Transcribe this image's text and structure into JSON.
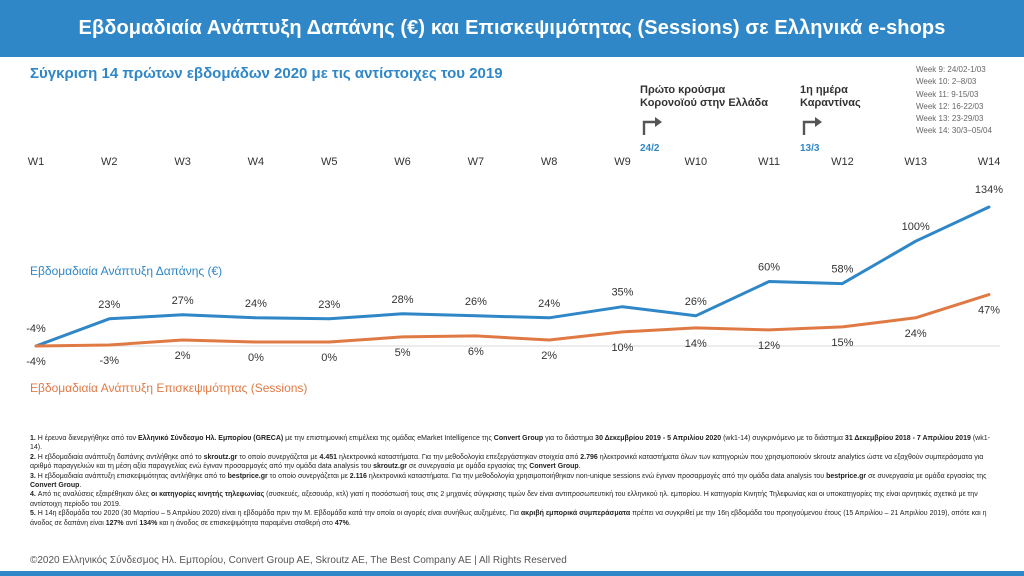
{
  "header": {
    "title": "Εβδομαδιαία Ανάπτυξη Δαπάνης (€) και Επισκεψιμότητας (Sessions) σε Ελληνικά e-shops"
  },
  "subtitle": "Σύγκριση 14 πρώτων εβδομάδων 2020 με τις αντίστοιχες του 2019",
  "weeks_legend": [
    "Week 9: 24/02-1/03",
    "Week 10: 2–8/03",
    "Week 11: 9-15/03",
    "Week 12: 16-22/03",
    "Week 13: 23-29/03",
    "Week 14: 30/3–05/04"
  ],
  "events": [
    {
      "line1": "Πρώτο κρούσμα",
      "line2": "Κορονοϊού στην Ελλάδα",
      "date": "24/2"
    },
    {
      "line1": "1η ημέρα",
      "line2": "Καραντίνας",
      "date": "13/3"
    }
  ],
  "chart_data": {
    "type": "line",
    "categories": [
      "W1",
      "W2",
      "W3",
      "W4",
      "W5",
      "W6",
      "W7",
      "W8",
      "W9",
      "W10",
      "W11",
      "W12",
      "W13",
      "W14"
    ],
    "series": [
      {
        "name": "Εβδομαδιαία Ανάπτυξη Δαπάνης (€)",
        "color": "#2f87c7",
        "values": [
          -4,
          23,
          27,
          24,
          23,
          28,
          26,
          24,
          35,
          26,
          60,
          58,
          100,
          134
        ],
        "labels": [
          "-4%",
          "23%",
          "27%",
          "24%",
          "23%",
          "28%",
          "26%",
          "24%",
          "35%",
          "26%",
          "60%",
          "58%",
          "100%",
          "134%"
        ]
      },
      {
        "name": "Εβδομαδιαία Ανάπτυξη Επισκεψιμότητας (Sessions)",
        "color": "#e07a45",
        "values": [
          -4,
          -3,
          2,
          0,
          0,
          5,
          6,
          2,
          10,
          14,
          12,
          15,
          24,
          47
        ],
        "labels": [
          "-4%",
          "-3%",
          "2%",
          "0%",
          "0%",
          "5%",
          "6%",
          "2%",
          "10%",
          "14%",
          "12%",
          "15%",
          "24%",
          "47%"
        ]
      }
    ],
    "ylim": [
      -4,
      134
    ],
    "grid": false,
    "legend": "inline-left"
  },
  "notes": [
    {
      "num": "1.",
      "parts": [
        [
          "Η έρευνα διενεργήθηκε από τον ",
          false
        ],
        [
          "Ελληνικό Σύνδεσμο Ηλ. Εμπορίου (GRECA)",
          true
        ],
        [
          " με την επιστημονική επιμέλεια της ομάδας eMarket Intelligence της ",
          false
        ],
        [
          "Convert Group",
          true
        ],
        [
          " για το διάστημα ",
          false
        ],
        [
          "30 Δεκεμβρίου 2019 - 5 Απριλίου 2020",
          true
        ],
        [
          " (wk1-14) συγκρινόμενο με το διάστημα ",
          false
        ],
        [
          "31 Δεκεμβρίου 2018 - 7 Απριλίου 2019",
          true
        ],
        [
          " (wk1-14).",
          false
        ]
      ]
    },
    {
      "num": "2.",
      "parts": [
        [
          "Η εβδομαδιαία ανάπτυξη δαπάνης αντλήθηκε από το ",
          false
        ],
        [
          "skroutz.gr",
          true
        ],
        [
          " το οποίο συνεργάζεται με ",
          false
        ],
        [
          "4.451",
          true
        ],
        [
          " ηλεκτρονικά καταστήματα. Για την μεθοδολογία επεξεργάστηκαν στοιχεία από ",
          false
        ],
        [
          "2.796",
          true
        ],
        [
          " ηλεκτρονικά καταστήματα όλων των κατηγοριών που χρησιμοποιούν skroutz analytics ώστε να εξαχθούν συμπεράσματα για αριθμό παραγγελιών και τη μέση αξία παραγγελίας ενώ έγιναν προσαρμογές από την ομάδα data analysis του ",
          false
        ],
        [
          "skroutz.gr",
          true
        ],
        [
          " σε συνεργασία με ομάδα εργασίας της ",
          false
        ],
        [
          "Convert Group",
          true
        ],
        [
          ".",
          false
        ]
      ]
    },
    {
      "num": "3.",
      "parts": [
        [
          "Η εβδομαδιαία ανάπτυξη επισκεψιμότητας αντλήθηκε από το ",
          false
        ],
        [
          "bestprice.gr",
          true
        ],
        [
          " το οποίο συνεργάζεται με ",
          false
        ],
        [
          "2.116",
          true
        ],
        [
          " ηλεκτρονικά καταστήματα. Για την μεθοδολογία χρησιμοποιήθηκαν non-unique sessions ενώ έγιναν προσαρμογές από την ομάδα data analysis του ",
          false
        ],
        [
          "bestprice.gr",
          true
        ],
        [
          " σε συνεργασία με ομάδα εργασίας της ",
          false
        ],
        [
          "Convert Group",
          true
        ],
        [
          ".",
          false
        ]
      ]
    },
    {
      "num": "4.",
      "parts": [
        [
          "Από τις αναλύσεις εξαιρέθηκαν όλες ",
          false
        ],
        [
          "οι κατηγορίες κινητής τηλεφωνίας",
          true
        ],
        [
          " (συσκευές, αξεσουάρ, κτλ) γιατί η ποσόστωσή τους στις 2 μηχανές σύγκρισης τιμών δεν είναι αντιπροσωπευτική του ελληνικού ηλ. εμπορίου. Η κατηγορία Κινητής Τηλεφωνίας και οι υποκατηγορίες της είναι αρνητικές σχετικά με την αντίστοιχη περίοδο του 2019.",
          false
        ]
      ]
    },
    {
      "num": "5.",
      "parts": [
        [
          "Η 14η εβδομάδα του 2020 (30 Μαρτίου – 5 Απριλίου 2020) είναι η εβδομάδα πριν την Μ. Εβδομάδα κατά την οποία οι αγορές είναι συνήθως αυξημένες. Για ",
          false
        ],
        [
          "ακριβή εμπορικά συμπεράσματα",
          true
        ],
        [
          " πρέπει να συγκριθεί με την 16η εβδομάδα του προηγούμενου έτους (15 Απριλίου – 21 Απριλίου 2019), οπότε και η άνοδος σε δαπάνη είναι ",
          false
        ],
        [
          "127%",
          true
        ],
        [
          " αντί ",
          false
        ],
        [
          "134%",
          true
        ],
        [
          " και η άνοδος σε επισκεψιμότητα παραμένει σταθερή στο ",
          false
        ],
        [
          "47%",
          true
        ],
        [
          ".",
          false
        ]
      ]
    }
  ],
  "copyright": "©2020 Ελληνικός Σύνδεσμος Ηλ. Εμπορίου, Convert Group AE, Skroutz AE, The Best Company AE | All Rights Reserved"
}
